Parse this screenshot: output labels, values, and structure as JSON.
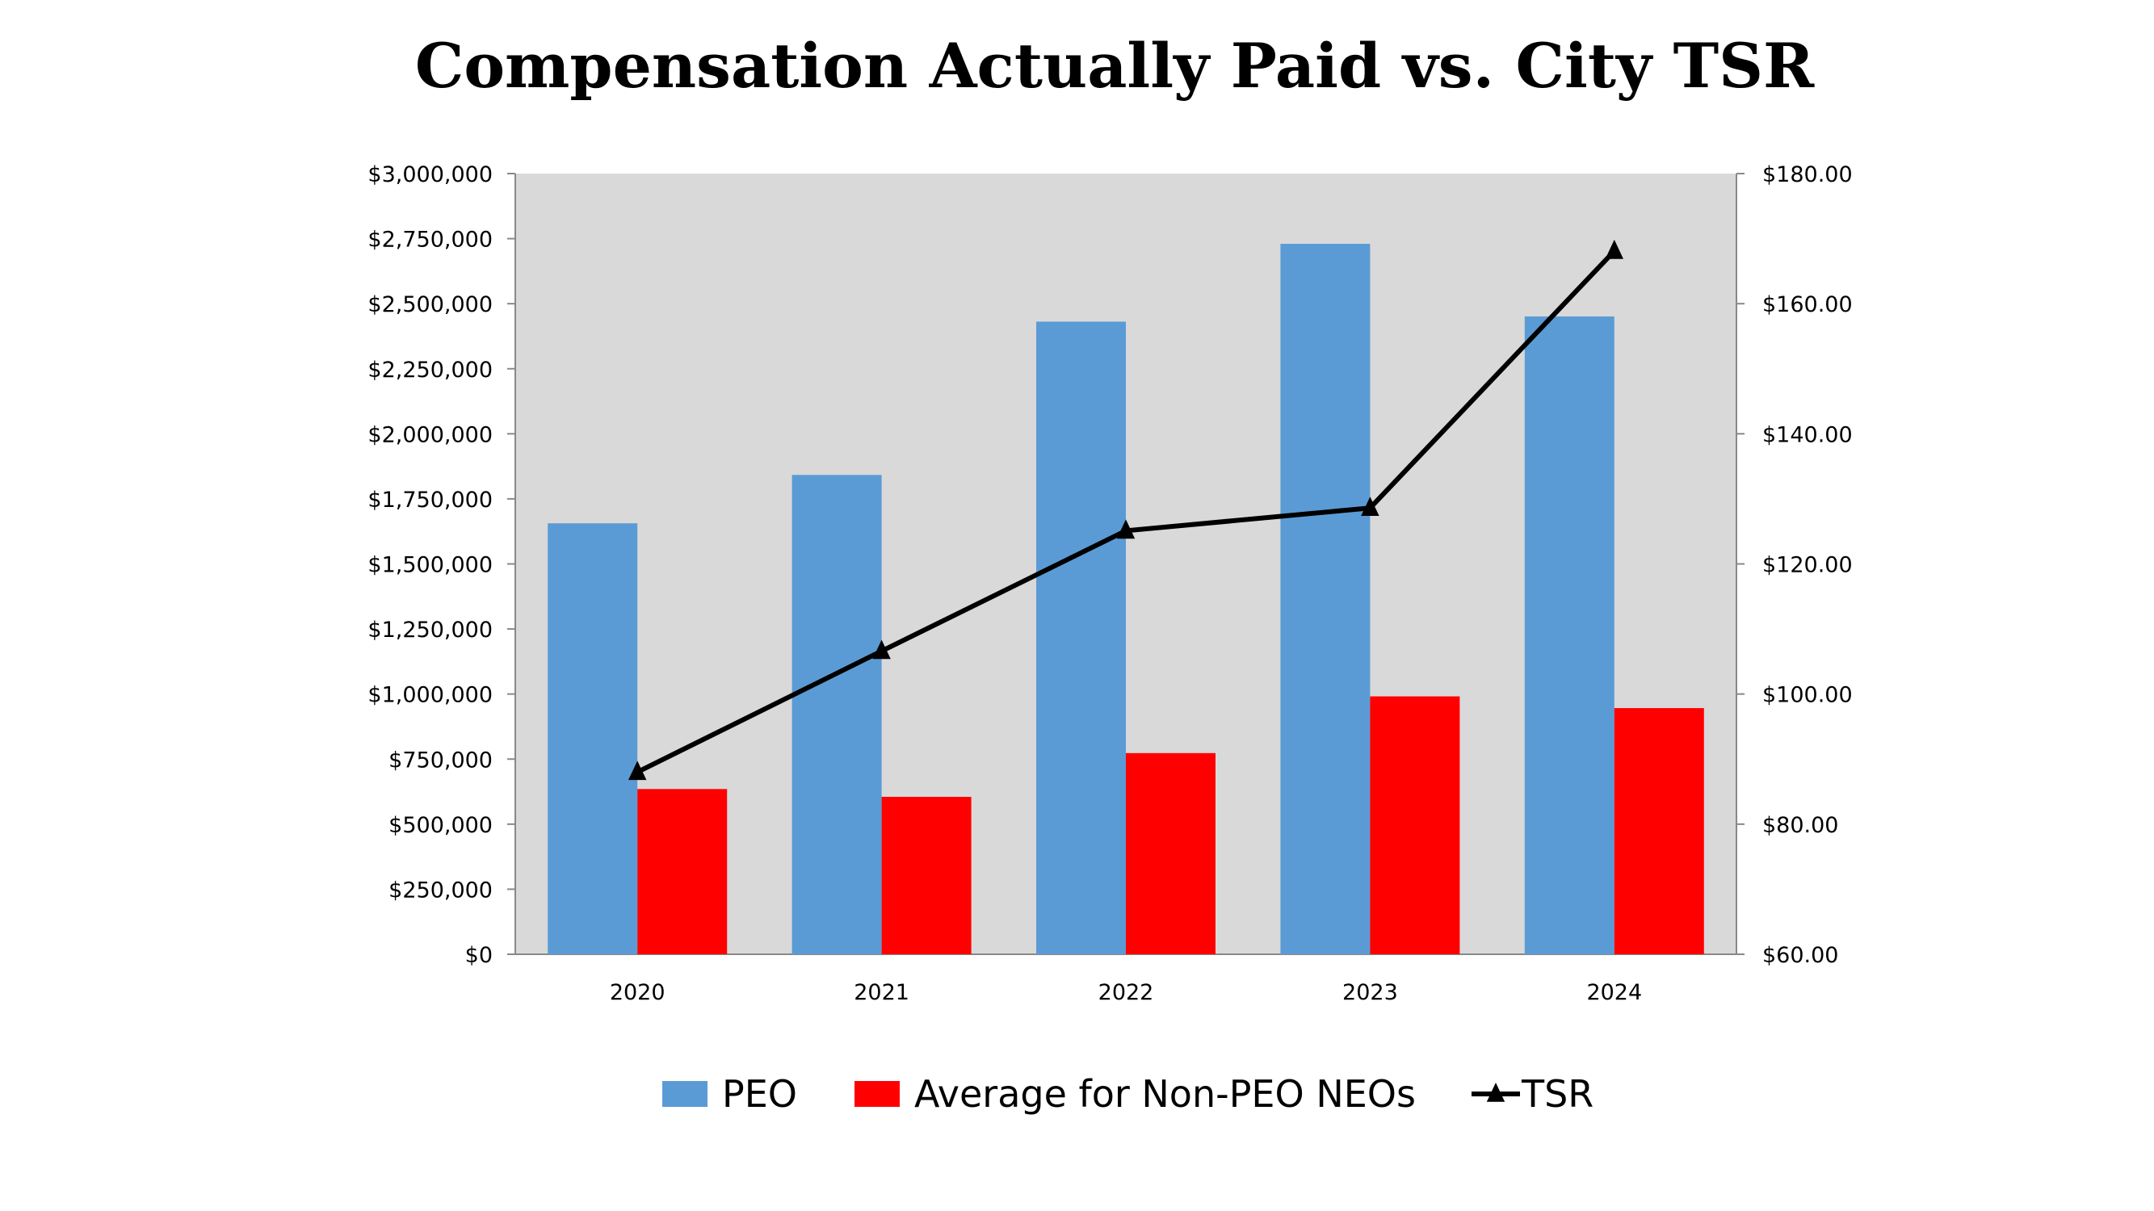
{
  "chart_data": {
    "type": "bar",
    "title": "Compensation Actually Paid vs. City TSR",
    "categories": [
      "2020",
      "2021",
      "2022",
      "2023",
      "2024"
    ],
    "series": [
      {
        "name": "PEO",
        "type": "bar",
        "axis": "left",
        "color": "#5B9BD5",
        "values": [
          1656000,
          1842000,
          2431000,
          2730000,
          2451000
        ]
      },
      {
        "name": "Average for Non-PEO NEOs",
        "type": "bar",
        "axis": "left",
        "color": "#FF0000",
        "values": [
          635000,
          605000,
          773000,
          991000,
          946000
        ]
      },
      {
        "name": "TSR",
        "type": "line",
        "axis": "right",
        "color": "#000000",
        "marker": "triangle",
        "values": [
          88.0,
          106.6,
          125.1,
          128.6,
          168.1
        ]
      }
    ],
    "y_left": {
      "lim": [
        0,
        3000000
      ],
      "ticks": [
        "$0",
        "$250,000",
        "$500,000",
        "$750,000",
        "$1,000,000",
        "$1,250,000",
        "$1,500,000",
        "$1,750,000",
        "$2,000,000",
        "$2,250,000",
        "$2,500,000",
        "$2,750,000",
        "$3,000,000"
      ]
    },
    "y_right": {
      "lim": [
        60,
        180
      ],
      "ticks": [
        "$60.00",
        "$80.00",
        "$100.00",
        "$120.00",
        "$140.00",
        "$160.00",
        "$180.00"
      ]
    },
    "plot_background": "#D9D9D9",
    "grid": false,
    "legend": "bottom"
  }
}
